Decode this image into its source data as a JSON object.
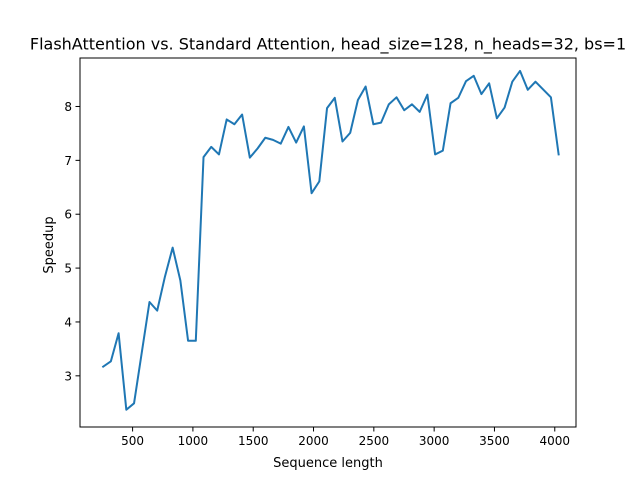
{
  "chart_data": {
    "type": "line",
    "title": "FlashAttention vs. Standard Attention, head_size=128, n_heads=32, bs=1",
    "xlabel": "Sequence length",
    "ylabel": "Speedup",
    "xlim": [
      64,
      4176
    ],
    "ylim": [
      2.05,
      8.9
    ],
    "xticks": [
      500,
      1000,
      1500,
      2000,
      2500,
      3000,
      3500,
      4000
    ],
    "yticks": [
      3,
      4,
      5,
      6,
      7,
      8
    ],
    "grid": false,
    "series": [
      {
        "color": "#1f77b4",
        "x": [
          256,
          320,
          384,
          448,
          512,
          576,
          640,
          704,
          768,
          832,
          896,
          960,
          1024,
          1088,
          1152,
          1216,
          1280,
          1344,
          1408,
          1472,
          1536,
          1600,
          1664,
          1728,
          1792,
          1856,
          1920,
          1984,
          2048,
          2112,
          2176,
          2240,
          2304,
          2368,
          2432,
          2496,
          2560,
          2624,
          2688,
          2752,
          2816,
          2880,
          2944,
          3008,
          3072,
          3136,
          3200,
          3264,
          3328,
          3392,
          3456,
          3520,
          3584,
          3648,
          3712,
          3776,
          3840,
          3968,
          4032
        ],
        "y": [
          3.17,
          3.27,
          3.79,
          2.37,
          2.49,
          3.43,
          4.37,
          4.21,
          4.84,
          5.38,
          4.77,
          3.65,
          3.65,
          7.06,
          7.25,
          7.11,
          7.76,
          7.67,
          7.85,
          7.05,
          7.22,
          7.42,
          7.38,
          7.31,
          7.62,
          7.33,
          7.63,
          6.39,
          6.61,
          7.97,
          8.16,
          7.35,
          7.51,
          8.12,
          8.37,
          7.67,
          7.7,
          8.04,
          8.17,
          7.93,
          8.04,
          7.9,
          8.22,
          7.11,
          7.18,
          8.06,
          8.16,
          8.47,
          8.57,
          8.23,
          8.43,
          7.78,
          7.98,
          8.46,
          8.66,
          8.31,
          8.46,
          8.17,
          7.11
        ]
      }
    ]
  }
}
